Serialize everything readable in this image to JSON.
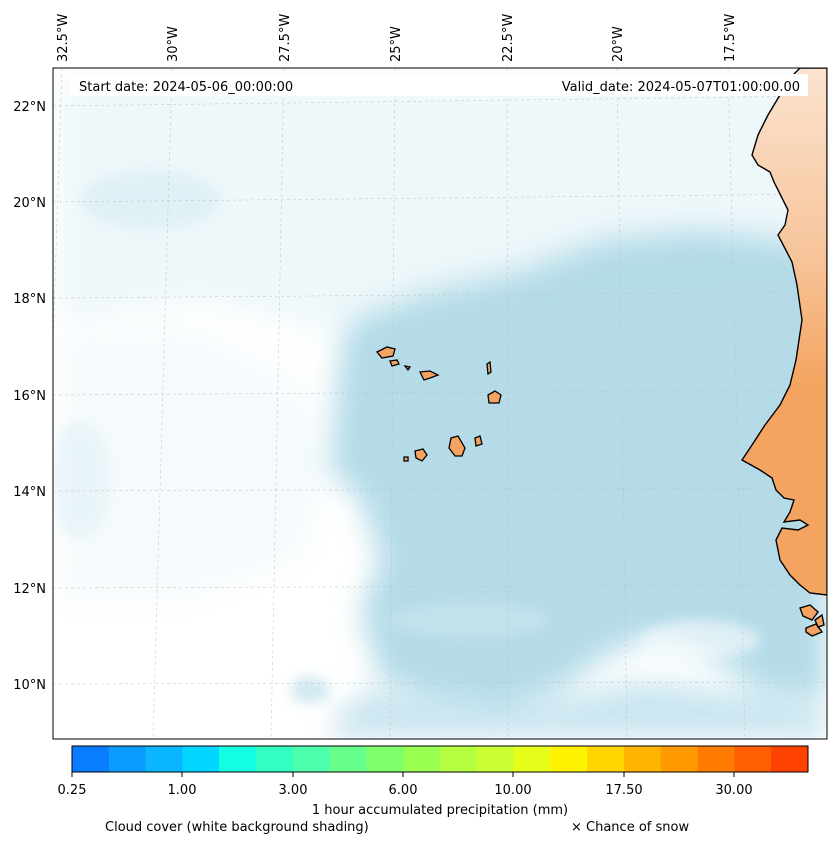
{
  "header": {
    "start_date": "Start date: 2024-05-06_00:00:00",
    "valid_date": "Valid_date: 2024-05-07T01:00:00.00"
  },
  "axes": {
    "lon_labels": [
      "32.5°W",
      "30°W",
      "27.5°W",
      "25°W",
      "22.5°W",
      "20°W",
      "17.5°W"
    ],
    "lat_labels": [
      "22°N",
      "20°N",
      "18°N",
      "16°N",
      "14°N",
      "12°N",
      "10°N"
    ]
  },
  "colorbar": {
    "tick_labels": [
      "0.25",
      "1.00",
      "3.00",
      "6.00",
      "10.00",
      "17.50",
      "30.00"
    ],
    "colors": [
      "#0a7cff",
      "#0b9bff",
      "#0ab6ff",
      "#00d6ff",
      "#12ffe2",
      "#31ffc1",
      "#4cffac",
      "#66ff8c",
      "#80ff6c",
      "#99ff50",
      "#b3ff40",
      "#ccff33",
      "#e6ff1a",
      "#fff200",
      "#ffd500",
      "#ffb400",
      "#ff9a00",
      "#ff7c00",
      "#ff5f00",
      "#ff4200"
    ],
    "label": "1 hour accumulated precipitation (mm)"
  },
  "legend": {
    "cloud_cover": "Cloud cover (white background shading)",
    "snow": "× Chance of snow"
  },
  "colors": {
    "ocean_cloud": "#add8e6",
    "land": "#f4a460",
    "land_outline": "#000000"
  }
}
